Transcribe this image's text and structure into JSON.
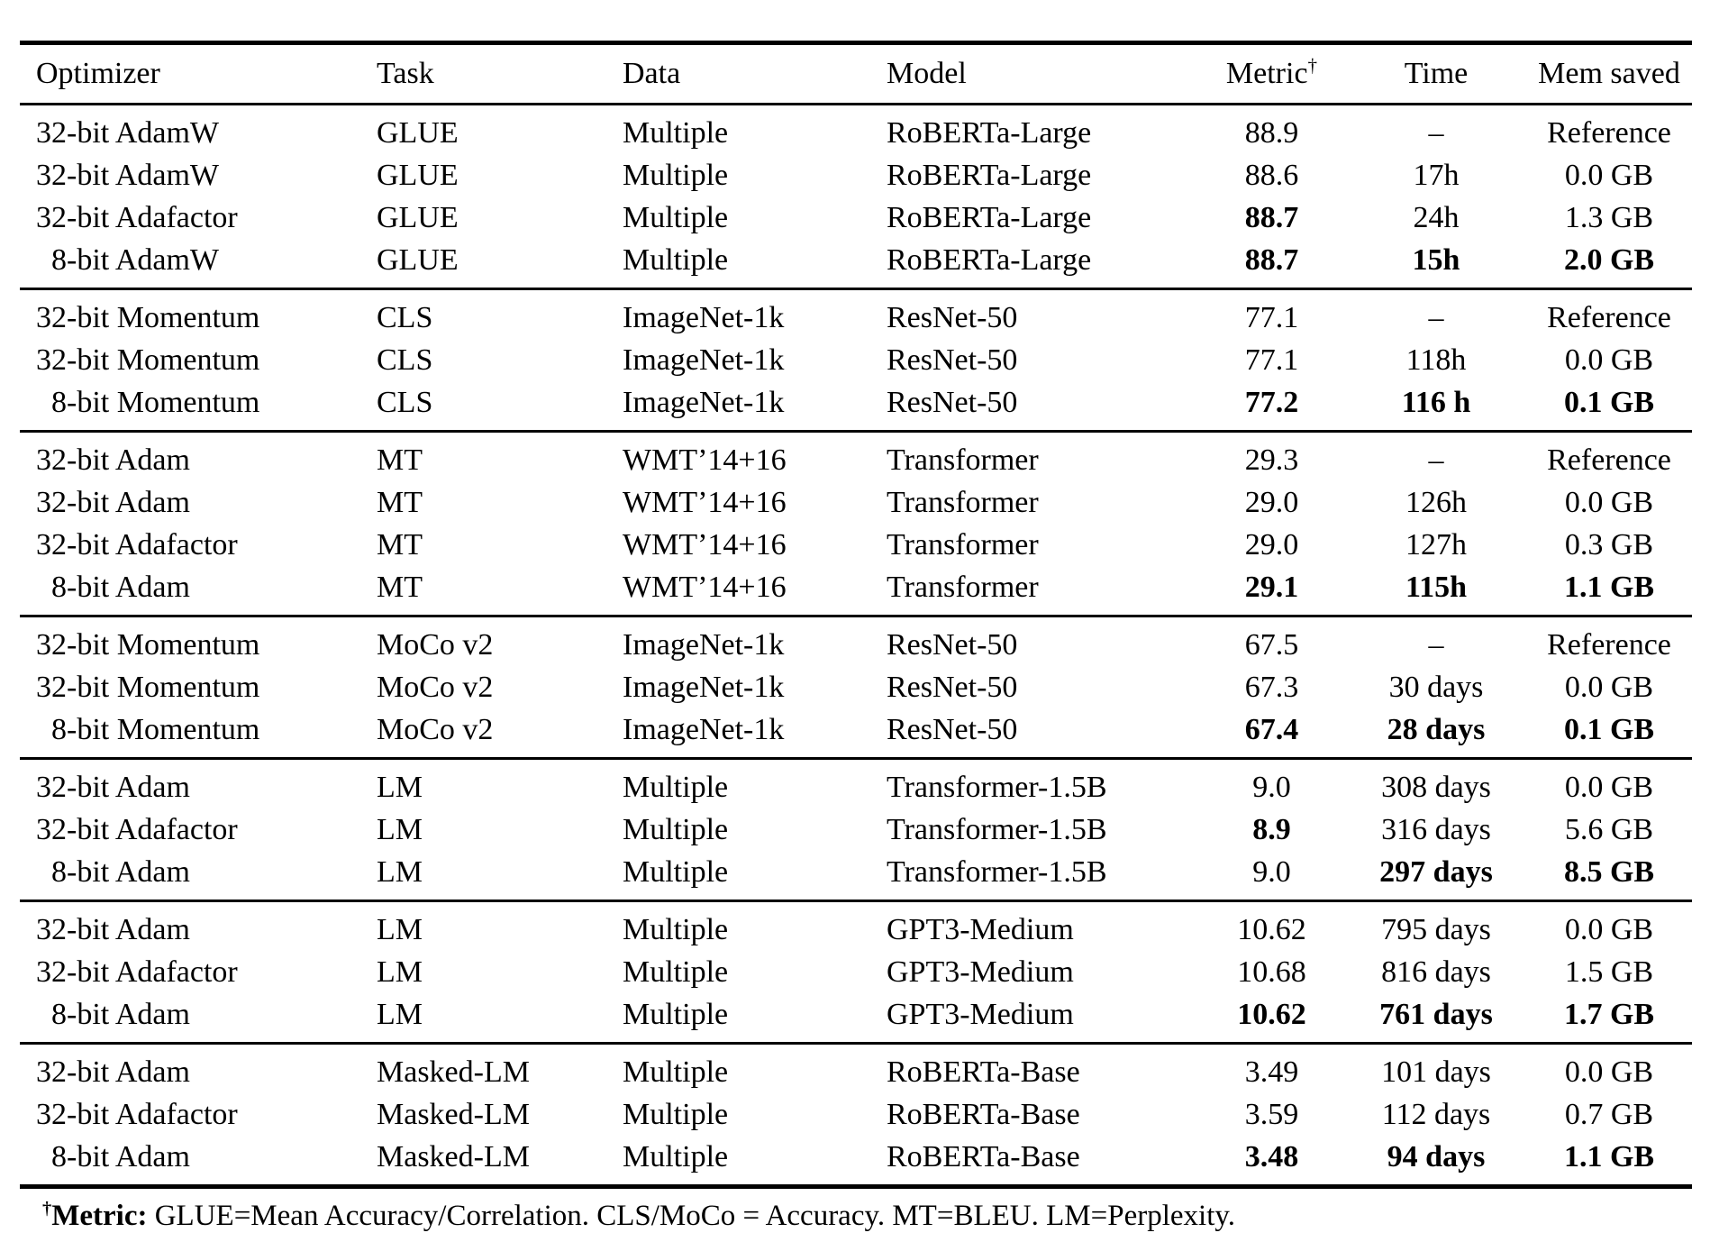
{
  "table": {
    "columns": [
      {
        "key": "optimizer",
        "label": "Optimizer"
      },
      {
        "key": "task",
        "label": "Task"
      },
      {
        "key": "data",
        "label": "Data"
      },
      {
        "key": "model",
        "label": "Model"
      },
      {
        "key": "metric",
        "label": "Metric",
        "sup": "†"
      },
      {
        "key": "time",
        "label": "Time"
      },
      {
        "key": "mem",
        "label": "Mem saved"
      }
    ],
    "groups": [
      {
        "rows": [
          {
            "optimizer": "32-bit AdamW",
            "task": "GLUE",
            "data": "Multiple",
            "model": "RoBERTa-Large",
            "metric": "88.9",
            "time": "–",
            "mem": "Reference",
            "bold": []
          },
          {
            "optimizer": "32-bit AdamW",
            "task": "GLUE",
            "data": "Multiple",
            "model": "RoBERTa-Large",
            "metric": "88.6",
            "time": "17h",
            "mem": "0.0 GB",
            "bold": []
          },
          {
            "optimizer": "32-bit Adafactor",
            "task": "GLUE",
            "data": "Multiple",
            "model": "RoBERTa-Large",
            "metric": "88.7",
            "time": "24h",
            "mem": "1.3 GB",
            "bold": [
              "metric"
            ]
          },
          {
            "optimizer": "8-bit AdamW",
            "task": "GLUE",
            "data": "Multiple",
            "model": "RoBERTa-Large",
            "metric": "88.7",
            "time": "15h",
            "mem": "2.0 GB",
            "bold": [
              "metric",
              "time",
              "mem"
            ]
          }
        ]
      },
      {
        "rows": [
          {
            "optimizer": "32-bit Momentum",
            "task": "CLS",
            "data": "ImageNet-1k",
            "model": "ResNet-50",
            "metric": "77.1",
            "time": "–",
            "mem": "Reference",
            "bold": []
          },
          {
            "optimizer": "32-bit Momentum",
            "task": "CLS",
            "data": "ImageNet-1k",
            "model": "ResNet-50",
            "metric": "77.1",
            "time": "118h",
            "mem": "0.0 GB",
            "bold": []
          },
          {
            "optimizer": "8-bit Momentum",
            "task": "CLS",
            "data": "ImageNet-1k",
            "model": "ResNet-50",
            "metric": "77.2",
            "time": "116 h",
            "mem": "0.1 GB",
            "bold": [
              "metric",
              "time",
              "mem"
            ]
          }
        ]
      },
      {
        "rows": [
          {
            "optimizer": "32-bit Adam",
            "task": "MT",
            "data": "WMT’14+16",
            "model": "Transformer",
            "metric": "29.3",
            "time": "–",
            "mem": "Reference",
            "bold": []
          },
          {
            "optimizer": "32-bit Adam",
            "task": "MT",
            "data": "WMT’14+16",
            "model": "Transformer",
            "metric": "29.0",
            "time": "126h",
            "mem": "0.0 GB",
            "bold": []
          },
          {
            "optimizer": "32-bit Adafactor",
            "task": "MT",
            "data": "WMT’14+16",
            "model": "Transformer",
            "metric": "29.0",
            "time": "127h",
            "mem": "0.3 GB",
            "bold": []
          },
          {
            "optimizer": "8-bit Adam",
            "task": "MT",
            "data": "WMT’14+16",
            "model": "Transformer",
            "metric": "29.1",
            "time": "115h",
            "mem": "1.1 GB",
            "bold": [
              "metric",
              "time",
              "mem"
            ]
          }
        ]
      },
      {
        "rows": [
          {
            "optimizer": "32-bit Momentum",
            "task": "MoCo v2",
            "data": "ImageNet-1k",
            "model": "ResNet-50",
            "metric": "67.5",
            "time": "–",
            "mem": "Reference",
            "bold": []
          },
          {
            "optimizer": "32-bit Momentum",
            "task": "MoCo v2",
            "data": "ImageNet-1k",
            "model": "ResNet-50",
            "metric": "67.3",
            "time": "30 days",
            "mem": "0.0 GB",
            "bold": []
          },
          {
            "optimizer": "8-bit Momentum",
            "task": "MoCo v2",
            "data": "ImageNet-1k",
            "model": "ResNet-50",
            "metric": "67.4",
            "time": "28 days",
            "mem": "0.1 GB",
            "bold": [
              "metric",
              "time",
              "mem"
            ]
          }
        ]
      },
      {
        "rows": [
          {
            "optimizer": "32-bit Adam",
            "task": "LM",
            "data": "Multiple",
            "model": "Transformer-1.5B",
            "metric": "9.0",
            "time": "308 days",
            "mem": "0.0 GB",
            "bold": []
          },
          {
            "optimizer": "32-bit Adafactor",
            "task": "LM",
            "data": "Multiple",
            "model": "Transformer-1.5B",
            "metric": "8.9",
            "time": "316 days",
            "mem": "5.6 GB",
            "bold": [
              "metric"
            ]
          },
          {
            "optimizer": "8-bit Adam",
            "task": "LM",
            "data": "Multiple",
            "model": "Transformer-1.5B",
            "metric": "9.0",
            "time": "297 days",
            "mem": "8.5 GB",
            "bold": [
              "time",
              "mem"
            ]
          }
        ]
      },
      {
        "rows": [
          {
            "optimizer": "32-bit Adam",
            "task": "LM",
            "data": "Multiple",
            "model": "GPT3-Medium",
            "metric": "10.62",
            "time": "795 days",
            "mem": "0.0 GB",
            "bold": []
          },
          {
            "optimizer": "32-bit Adafactor",
            "task": "LM",
            "data": "Multiple",
            "model": "GPT3-Medium",
            "metric": "10.68",
            "time": "816 days",
            "mem": "1.5 GB",
            "bold": []
          },
          {
            "optimizer": "8-bit Adam",
            "task": "LM",
            "data": "Multiple",
            "model": "GPT3-Medium",
            "metric": "10.62",
            "time": "761 days",
            "mem": "1.7 GB",
            "bold": [
              "metric",
              "time",
              "mem"
            ]
          }
        ]
      },
      {
        "rows": [
          {
            "optimizer": "32-bit Adam",
            "task": "Masked-LM",
            "data": "Multiple",
            "model": "RoBERTa-Base",
            "metric": "3.49",
            "time": "101 days",
            "mem": "0.0 GB",
            "bold": []
          },
          {
            "optimizer": "32-bit Adafactor",
            "task": "Masked-LM",
            "data": "Multiple",
            "model": "RoBERTa-Base",
            "metric": "3.59",
            "time": "112 days",
            "mem": "0.7 GB",
            "bold": []
          },
          {
            "optimizer": "8-bit Adam",
            "task": "Masked-LM",
            "data": "Multiple",
            "model": "RoBERTa-Base",
            "metric": "3.48",
            "time": "94 days",
            "mem": "1.1 GB",
            "bold": [
              "metric",
              "time",
              "mem"
            ]
          }
        ]
      }
    ],
    "footnote": {
      "sup": "†",
      "term": "Metric",
      "colon": ": ",
      "text": "GLUE=Mean Accuracy/Correlation. CLS/MoCo = Accuracy. MT=BLEU. LM=Perplexity."
    }
  }
}
